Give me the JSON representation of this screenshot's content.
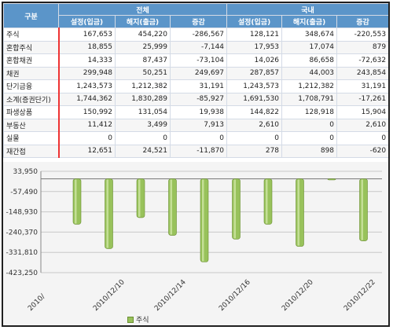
{
  "table": {
    "header": {
      "category": "구분",
      "groups": [
        "전체",
        "국내"
      ],
      "columns": [
        "설정(입금)",
        "해지(출금)",
        "증감",
        "설정(입금)",
        "해지(출금)",
        "증감"
      ]
    },
    "rows": [
      {
        "label": "주식",
        "values": [
          "167,653",
          "454,220",
          "-286,567",
          "128,121",
          "348,674",
          "-220,553"
        ]
      },
      {
        "label": "혼합주식",
        "values": [
          "18,855",
          "25,999",
          "-7,144",
          "17,953",
          "17,074",
          "879"
        ]
      },
      {
        "label": "혼합채권",
        "values": [
          "14,333",
          "87,437",
          "-73,104",
          "14,026",
          "86,658",
          "-72,632"
        ]
      },
      {
        "label": "채권",
        "values": [
          "299,948",
          "50,251",
          "249,697",
          "287,857",
          "44,003",
          "243,854"
        ]
      },
      {
        "label": "단기금융",
        "values": [
          "1,243,573",
          "1,212,382",
          "31,191",
          "1,243,573",
          "1,212,382",
          "31,191"
        ]
      },
      {
        "label": "소계(증권단기)",
        "values": [
          "1,744,362",
          "1,830,289",
          "-85,927",
          "1,691,530",
          "1,708,791",
          "-17,261"
        ]
      },
      {
        "label": "파생상품",
        "values": [
          "150,992",
          "131,054",
          "19,938",
          "144,822",
          "128,918",
          "15,904"
        ]
      },
      {
        "label": "부동산",
        "values": [
          "11,412",
          "3,499",
          "7,913",
          "2,610",
          "0",
          "2,610"
        ]
      },
      {
        "label": "실물",
        "values": [
          "0",
          "0",
          "0",
          "0",
          "0",
          "0"
        ]
      },
      {
        "label": "재간접",
        "values": [
          "12,651",
          "24,521",
          "-11,870",
          "278",
          "898",
          "-620"
        ]
      }
    ]
  },
  "chart_data": {
    "type": "bar",
    "categories": [
      "",
      "",
      "",
      "",
      "",
      "",
      "",
      "",
      "",
      "",
      ""
    ],
    "series": [
      {
        "name": "주식",
        "values": [
          -205000,
          -315000,
          -175000,
          -255000,
          -375000,
          -272000,
          -205000,
          -305000,
          -5000,
          -280000,
          -15000
        ]
      }
    ],
    "ylim": [
      -423250,
      33950
    ],
    "yticks": [
      "33,950",
      "-57,490",
      "-148,930",
      "-240,370",
      "-331,810",
      "-423,250"
    ],
    "xtick_labels": [
      "2010/",
      "2010/12/10",
      "2010/12/14",
      "2010/12/16",
      "2010/12/20",
      "2010/12/22"
    ],
    "grid": true,
    "legend": "bottom",
    "colors": {
      "bar": "#98c25b",
      "bar_edge": "#6b8f32",
      "grid": "#c8c8c8",
      "zero_line": "#777777"
    }
  }
}
